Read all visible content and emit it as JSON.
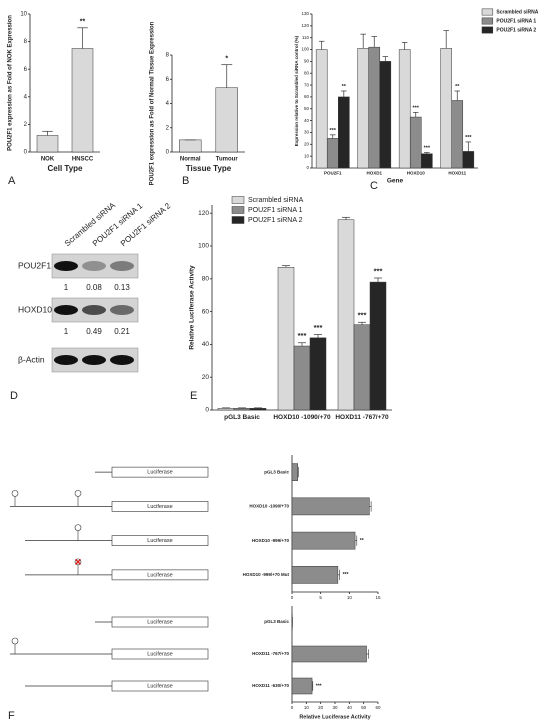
{
  "chart_data": [
    {
      "type": "bar",
      "ylabel": "POU2F1 expression as Fold of NOK Expression",
      "xlabel": "Cell Type",
      "categories": [
        "NOK",
        "HNSCC"
      ],
      "values": [
        1.2,
        7.5
      ],
      "errors": [
        0.3,
        1.5
      ],
      "color": "#d9d9d9",
      "ylim": [
        0,
        10
      ],
      "yticks": [
        0,
        2,
        4,
        6,
        8,
        10
      ],
      "annotations": [
        {
          "text": "**",
          "category": 1
        }
      ]
    },
    {
      "type": "bar",
      "ylabel": "POU2F1 expression as Fold of Normal Tissue Expression",
      "xlabel": "Tissue Type",
      "categories": [
        "Normal",
        "Tumour"
      ],
      "values": [
        1,
        5.3
      ],
      "errors": [
        0,
        1.9
      ],
      "color": "#d9d9d9",
      "ylim": [
        0,
        8
      ],
      "yticks": [
        0,
        2,
        4,
        6,
        8
      ],
      "annotations": [
        {
          "text": "*",
          "category": 1
        }
      ]
    },
    {
      "type": "bar",
      "ylabel": "Expression relative to Scrambled siRNA control (%)",
      "xlabel": "Gene",
      "categories": [
        "POU2F1",
        "HOXD1",
        "HOXD10",
        "HOXD11"
      ],
      "series": [
        {
          "name": "Scrambled siRNA",
          "color": "#d9d9d9",
          "values": [
            100,
            101,
            100,
            101
          ],
          "errors": [
            7,
            12,
            6,
            15
          ]
        },
        {
          "name": "POU2F1 siRNA 1",
          "color": "#8c8c8c",
          "values": [
            25,
            102,
            43,
            57
          ],
          "errors": [
            3,
            9,
            4,
            8
          ]
        },
        {
          "name": "POU2F1 siRNA 2",
          "color": "#262626",
          "values": [
            60,
            90,
            12,
            14
          ],
          "errors": [
            5,
            4,
            1,
            8
          ]
        }
      ],
      "ylim": [
        0,
        130
      ],
      "yticks": [
        0,
        10,
        20,
        30,
        40,
        50,
        60,
        70,
        80,
        90,
        100,
        110,
        120,
        130
      ],
      "annotations": [
        {
          "text": "***",
          "series": 1,
          "category": 0
        },
        {
          "text": "**",
          "series": 2,
          "category": 0
        },
        {
          "text": "***",
          "series": 1,
          "category": 2
        },
        {
          "text": "***",
          "series": 2,
          "category": 2
        },
        {
          "text": "**",
          "series": 1,
          "category": 3
        },
        {
          "text": "***",
          "series": 2,
          "category": 3
        }
      ]
    },
    {
      "type": "bar",
      "ylabel": "Relative Luciferase Activity",
      "categories": [
        "pGL3 Basic",
        "HOXD10 -1090/+70",
        "HOXD11 -767/+70"
      ],
      "series": [
        {
          "name": "Scrambled siRNA",
          "color": "#d9d9d9",
          "values": [
            1,
            87,
            116
          ],
          "errors": [
            0.3,
            1,
            1.5
          ]
        },
        {
          "name": "POU2F1 siRNA 1",
          "color": "#8c8c8c",
          "values": [
            1,
            39,
            52
          ],
          "errors": [
            0.3,
            2,
            1.5
          ]
        },
        {
          "name": "POU2F1 siRNA 2",
          "color": "#262626",
          "values": [
            1,
            44,
            78
          ],
          "errors": [
            0.3,
            2,
            2.5
          ]
        }
      ],
      "ylim": [
        0,
        125
      ],
      "yticks": [
        0,
        20,
        40,
        60,
        80,
        100,
        120
      ],
      "annotations": [
        {
          "text": "***",
          "series": 1,
          "category": 1
        },
        {
          "text": "***",
          "series": 2,
          "category": 1
        },
        {
          "text": "***",
          "series": 1,
          "category": 2
        },
        {
          "text": "***",
          "series": 2,
          "category": 2
        }
      ]
    },
    {
      "type": "barh",
      "categories": [
        "pGL3 Basic",
        "HOXD10 -1090/+70",
        "HOXD10 -999/+70",
        "HOXD10 -999/+70 Mut"
      ],
      "construct_labels": [
        "Luciferase",
        "Luciferase",
        "Luciferase",
        "Luciferase"
      ],
      "values": [
        1,
        13.5,
        11,
        8
      ],
      "errors": [
        0.1,
        0.3,
        0.3,
        0.3
      ],
      "color": "#8c8c8c",
      "xlim": [
        0,
        15
      ],
      "xticks": [
        0,
        5,
        10,
        15
      ],
      "annotations": [
        {
          "text": "**",
          "category": 2
        },
        {
          "text": "***",
          "category": 3
        }
      ]
    },
    {
      "type": "barh",
      "xlabel": "Relative Luciferase Activity",
      "categories": [
        "pGL3 Basic",
        "HOXD11 -767/+70",
        "HOXD11 -630/+70"
      ],
      "construct_labels": [
        "Luciferase",
        "Luciferase",
        "Luciferase"
      ],
      "values": [
        0.2,
        52,
        14
      ],
      "errors": [
        0.1,
        1.5,
        0.5
      ],
      "color": "#8c8c8c",
      "xlim": [
        0,
        60
      ],
      "xticks": [
        0,
        10,
        20,
        30,
        40,
        50,
        60
      ],
      "annotations": [
        {
          "text": "***",
          "category": 2
        }
      ]
    }
  ],
  "blot": {
    "lanes": [
      "Scrambled siRNA",
      "POU2F1 siRNA 1",
      "POU2F1 siRNA 2"
    ],
    "rows": [
      {
        "label": "POU2F1",
        "values": [
          1,
          0.08,
          0.13
        ]
      },
      {
        "label": "HOXD10",
        "values": [
          1,
          0.49,
          0.21
        ]
      },
      {
        "label": "β-Actin"
      }
    ]
  },
  "panel_labels": [
    "A",
    "B",
    "C",
    "D",
    "E",
    "F"
  ]
}
